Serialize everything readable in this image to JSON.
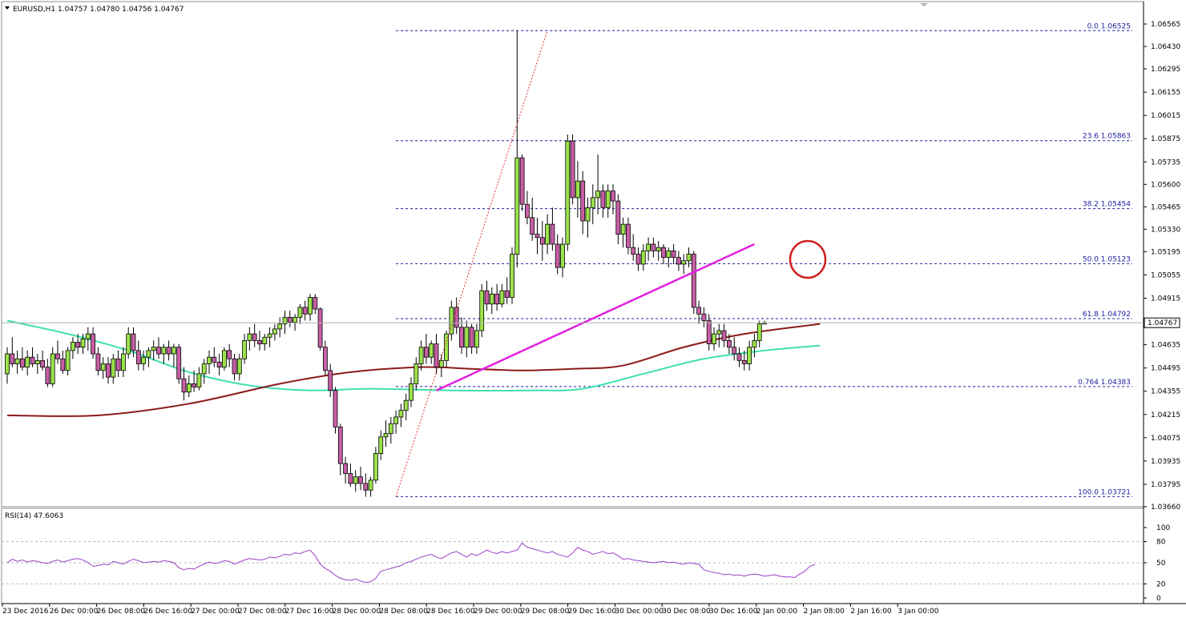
{
  "header": {
    "symbol": "EURUSD,H1",
    "ohlc": "1.04757 1.04780 1.04756 1.04767",
    "rsi_label": "RSI(14) 47.6063"
  },
  "colors": {
    "bull": "#9be34a",
    "bear": "#c85fa6",
    "wick": "#000000",
    "ma_red": "#8b1a1a",
    "ma_teal": "#40e0b0",
    "trendline": "#e020e0",
    "fib": "#1a1aa0",
    "rsi": "#9a40c8",
    "circle": "#d02020"
  },
  "chart_data": [
    {
      "type": "candlestick",
      "title": "EURUSD,H1",
      "ylim": [
        1.0366,
        1.06565
      ],
      "y_ticks": [
        "1.06565",
        "1.06430",
        "1.06295",
        "1.06155",
        "1.06015",
        "1.05875",
        "1.05735",
        "1.05600",
        "1.05465",
        "1.05330",
        "1.05195",
        "1.05055",
        "1.04915",
        "1.04780",
        "1.04635",
        "1.04495",
        "1.04355",
        "1.04215",
        "1.04075",
        "1.03935",
        "1.03795",
        "1.03660"
      ],
      "current_price": "1.04767",
      "x_ticks": [
        "23 Dec 2016",
        "26 Dec 00:00",
        "26 Dec 08:00",
        "26 Dec 16:00",
        "27 Dec 00:00",
        "27 Dec 08:00",
        "27 Dec 16:00",
        "28 Dec 00:00",
        "28 Dec 08:00",
        "28 Dec 16:00",
        "29 Dec 00:00",
        "29 Dec 08:00",
        "29 Dec 16:00",
        "30 Dec 00:00",
        "30 Dec 08:00",
        "30 Dec 16:00",
        "2 Jan 00:00",
        "2 Jan 08:00",
        "2 Jan 16:00",
        "3 Jan 00:00"
      ],
      "fib_levels": [
        {
          "label": "0.0 1.06525",
          "value": 1.06525
        },
        {
          "label": "23.6 1.05863",
          "value": 1.05863
        },
        {
          "label": "38.2 1.05454",
          "value": 1.05454
        },
        {
          "label": "50.0 1.05123",
          "value": 1.05123
        },
        {
          "label": "61.8 1.04792",
          "value": 1.04792
        },
        {
          "label": "0.764 1.04383",
          "value": 1.04383
        },
        {
          "label": "100.0 1.03721",
          "value": 1.03721
        }
      ],
      "candles": [
        [
          1.0446,
          1.0462,
          1.044,
          1.0458
        ],
        [
          1.0458,
          1.0468,
          1.045,
          1.0452
        ],
        [
          1.0452,
          1.046,
          1.0446,
          1.0455
        ],
        [
          1.0455,
          1.0462,
          1.0448,
          1.045
        ],
        [
          1.045,
          1.046,
          1.0445,
          1.0456
        ],
        [
          1.0456,
          1.0462,
          1.045,
          1.0452
        ],
        [
          1.0452,
          1.0458,
          1.0446,
          1.0454
        ],
        [
          1.0454,
          1.046,
          1.0448,
          1.045
        ],
        [
          1.045,
          1.0455,
          1.0438,
          1.044
        ],
        [
          1.044,
          1.0462,
          1.0438,
          1.0458
        ],
        [
          1.0458,
          1.0466,
          1.0452,
          1.0455
        ],
        [
          1.0455,
          1.046,
          1.0446,
          1.0448
        ],
        [
          1.0448,
          1.0462,
          1.0445,
          1.046
        ],
        [
          1.046,
          1.0468,
          1.0455,
          1.0465
        ],
        [
          1.0465,
          1.047,
          1.0458,
          1.0462
        ],
        [
          1.0462,
          1.047,
          1.0458,
          1.0467
        ],
        [
          1.0467,
          1.0474,
          1.046,
          1.047
        ],
        [
          1.047,
          1.0474,
          1.0455,
          1.0458
        ],
        [
          1.0458,
          1.0462,
          1.0445,
          1.0448
        ],
        [
          1.0448,
          1.0456,
          1.0443,
          1.0452
        ],
        [
          1.0452,
          1.0456,
          1.044,
          1.0444
        ],
        [
          1.0444,
          1.0458,
          1.044,
          1.0455
        ],
        [
          1.0455,
          1.046,
          1.0444,
          1.0448
        ],
        [
          1.0448,
          1.0462,
          1.0444,
          1.0458
        ],
        [
          1.0458,
          1.0474,
          1.0455,
          1.047
        ],
        [
          1.047,
          1.0474,
          1.0456,
          1.046
        ],
        [
          1.046,
          1.0466,
          1.0448,
          1.0452
        ],
        [
          1.0452,
          1.046,
          1.0448,
          1.0456
        ],
        [
          1.0456,
          1.0462,
          1.045,
          1.046
        ],
        [
          1.046,
          1.0466,
          1.0454,
          1.0462
        ],
        [
          1.0462,
          1.0468,
          1.0455,
          1.0458
        ],
        [
          1.0458,
          1.0464,
          1.0452,
          1.0462
        ],
        [
          1.0462,
          1.0466,
          1.0454,
          1.0458
        ],
        [
          1.0458,
          1.0464,
          1.045,
          1.0462
        ],
        [
          1.0462,
          1.0464,
          1.044,
          1.0443
        ],
        [
          1.0443,
          1.045,
          1.043,
          1.0435
        ],
        [
          1.0435,
          1.0445,
          1.0432,
          1.044
        ],
        [
          1.044,
          1.0448,
          1.0435,
          1.0438
        ],
        [
          1.0438,
          1.045,
          1.0436,
          1.0446
        ],
        [
          1.0446,
          1.0455,
          1.044,
          1.0452
        ],
        [
          1.0452,
          1.046,
          1.0446,
          1.0456
        ],
        [
          1.0456,
          1.0462,
          1.045,
          1.0453
        ],
        [
          1.0453,
          1.0458,
          1.0445,
          1.045
        ],
        [
          1.045,
          1.0462,
          1.0448,
          1.046
        ],
        [
          1.046,
          1.0464,
          1.045,
          1.0455
        ],
        [
          1.0455,
          1.0458,
          1.0442,
          1.0446
        ],
        [
          1.0446,
          1.0458,
          1.0442,
          1.0455
        ],
        [
          1.0455,
          1.047,
          1.0452,
          1.0466
        ],
        [
          1.0466,
          1.0474,
          1.046,
          1.047
        ],
        [
          1.047,
          1.0476,
          1.0462,
          1.0466
        ],
        [
          1.0466,
          1.0472,
          1.046,
          1.0464
        ],
        [
          1.0464,
          1.047,
          1.046,
          1.0468
        ],
        [
          1.0468,
          1.0474,
          1.0462,
          1.047
        ],
        [
          1.047,
          1.0476,
          1.0466,
          1.0473
        ],
        [
          1.0473,
          1.048,
          1.0468,
          1.0476
        ],
        [
          1.0476,
          1.0484,
          1.047,
          1.048
        ],
        [
          1.048,
          1.0484,
          1.0474,
          1.0477
        ],
        [
          1.0477,
          1.0482,
          1.0472,
          1.048
        ],
        [
          1.048,
          1.0488,
          1.0476,
          1.0486
        ],
        [
          1.0486,
          1.049,
          1.0478,
          1.0482
        ],
        [
          1.0482,
          1.0494,
          1.0478,
          1.0492
        ],
        [
          1.0492,
          1.0494,
          1.0482,
          1.0485
        ],
        [
          1.0485,
          1.0486,
          1.046,
          1.0462
        ],
        [
          1.0462,
          1.0466,
          1.0445,
          1.0448
        ],
        [
          1.0448,
          1.0452,
          1.0432,
          1.0436
        ],
        [
          1.0436,
          1.0438,
          1.041,
          1.0414
        ],
        [
          1.0414,
          1.0416,
          1.0385,
          1.0392
        ],
        [
          1.0392,
          1.0396,
          1.038,
          1.0386
        ],
        [
          1.0386,
          1.0392,
          1.0378,
          1.038
        ],
        [
          1.038,
          1.0388,
          1.0375,
          1.0384
        ],
        [
          1.0384,
          1.039,
          1.0376,
          1.038
        ],
        [
          1.038,
          1.0386,
          1.0372,
          1.0376
        ],
        [
          1.0376,
          1.0384,
          1.0372,
          1.0382
        ],
        [
          1.0382,
          1.0402,
          1.038,
          1.0398
        ],
        [
          1.0398,
          1.0412,
          1.0394,
          1.0408
        ],
        [
          1.0408,
          1.0418,
          1.0402,
          1.041
        ],
        [
          1.041,
          1.042,
          1.0404,
          1.0416
        ],
        [
          1.0416,
          1.0424,
          1.041,
          1.042
        ],
        [
          1.042,
          1.0428,
          1.0414,
          1.0424
        ],
        [
          1.0424,
          1.0434,
          1.0418,
          1.043
        ],
        [
          1.043,
          1.0444,
          1.0426,
          1.044
        ],
        [
          1.044,
          1.0456,
          1.0436,
          1.0452
        ],
        [
          1.0452,
          1.0466,
          1.0448,
          1.0462
        ],
        [
          1.0462,
          1.047,
          1.0452,
          1.0456
        ],
        [
          1.0456,
          1.0466,
          1.0452,
          1.0464
        ],
        [
          1.0464,
          1.047,
          1.0446,
          1.045
        ],
        [
          1.045,
          1.0458,
          1.0444,
          1.0454
        ],
        [
          1.0454,
          1.0472,
          1.045,
          1.047
        ],
        [
          1.047,
          1.049,
          1.0466,
          1.0486
        ],
        [
          1.0486,
          1.0492,
          1.047,
          1.0474
        ],
        [
          1.0474,
          1.048,
          1.0458,
          1.0462
        ],
        [
          1.0462,
          1.0478,
          1.0456,
          1.0474
        ],
        [
          1.0474,
          1.0476,
          1.0458,
          1.0462
        ],
        [
          1.0462,
          1.0476,
          1.0458,
          1.0472
        ],
        [
          1.0472,
          1.05,
          1.0468,
          1.0496
        ],
        [
          1.0496,
          1.0502,
          1.0484,
          1.0488
        ],
        [
          1.0488,
          1.0498,
          1.0482,
          1.0494
        ],
        [
          1.0494,
          1.05,
          1.0484,
          1.0488
        ],
        [
          1.0488,
          1.05,
          1.0486,
          1.0496
        ],
        [
          1.0496,
          1.0504,
          1.0488,
          1.0492
        ],
        [
          1.0492,
          1.0522,
          1.0488,
          1.0518
        ],
        [
          1.0518,
          1.06525,
          1.051,
          1.0576
        ],
        [
          1.0576,
          1.0578,
          1.0544,
          1.0548
        ],
        [
          1.0548,
          1.0556,
          1.0536,
          1.054
        ],
        [
          1.054,
          1.0552,
          1.0526,
          1.053
        ],
        [
          1.053,
          1.054,
          1.0518,
          1.0528
        ],
        [
          1.0528,
          1.0538,
          1.0514,
          1.0524
        ],
        [
          1.0524,
          1.0542,
          1.0518,
          1.0536
        ],
        [
          1.0536,
          1.0546,
          1.052,
          1.0524
        ],
        [
          1.0524,
          1.053,
          1.0506,
          1.051
        ],
        [
          1.051,
          1.0528,
          1.0504,
          1.0524
        ],
        [
          1.0524,
          1.059,
          1.052,
          1.0586
        ],
        [
          1.0586,
          1.059,
          1.0548,
          1.0552
        ],
        [
          1.0552,
          1.0574,
          1.054,
          1.0562
        ],
        [
          1.0562,
          1.0568,
          1.053,
          1.0538
        ],
        [
          1.0538,
          1.0552,
          1.0528,
          1.0546
        ],
        [
          1.0546,
          1.056,
          1.0536,
          1.0552
        ],
        [
          1.0552,
          1.0578,
          1.0542,
          1.0556
        ],
        [
          1.0556,
          1.056,
          1.054,
          1.0546
        ],
        [
          1.0546,
          1.056,
          1.054,
          1.0556
        ],
        [
          1.0556,
          1.056,
          1.0542,
          1.055
        ],
        [
          1.055,
          1.0554,
          1.0524,
          1.053
        ],
        [
          1.053,
          1.054,
          1.0522,
          1.0536
        ],
        [
          1.0536,
          1.054,
          1.0518,
          1.0522
        ],
        [
          1.0522,
          1.053,
          1.0514,
          1.0518
        ],
        [
          1.0518,
          1.0522,
          1.0508,
          1.0512
        ],
        [
          1.0512,
          1.0524,
          1.0508,
          1.052
        ],
        [
          1.052,
          1.0528,
          1.0514,
          1.0524
        ],
        [
          1.0524,
          1.0528,
          1.0516,
          1.052
        ],
        [
          1.052,
          1.0526,
          1.0514,
          1.0522
        ],
        [
          1.0522,
          1.0524,
          1.0512,
          1.0516
        ],
        [
          1.0516,
          1.0522,
          1.051,
          1.052
        ],
        [
          1.052,
          1.0524,
          1.0512,
          1.0516
        ],
        [
          1.0516,
          1.052,
          1.0508,
          1.0512
        ],
        [
          1.0512,
          1.0518,
          1.0506,
          1.0514
        ],
        [
          1.0514,
          1.0522,
          1.051,
          1.0518
        ],
        [
          1.0518,
          1.052,
          1.0482,
          1.0486
        ],
        [
          1.0486,
          1.049,
          1.0476,
          1.0482
        ],
        [
          1.0482,
          1.0486,
          1.0474,
          1.0478
        ],
        [
          1.0478,
          1.0482,
          1.046,
          1.0464
        ],
        [
          1.0464,
          1.0474,
          1.046,
          1.047
        ],
        [
          1.047,
          1.0476,
          1.0462,
          1.0472
        ],
        [
          1.0472,
          1.0476,
          1.0462,
          1.0466
        ],
        [
          1.0466,
          1.047,
          1.0458,
          1.0462
        ],
        [
          1.0462,
          1.0468,
          1.0454,
          1.0458
        ],
        [
          1.0458,
          1.0462,
          1.045,
          1.0454
        ],
        [
          1.0454,
          1.046,
          1.0448,
          1.0452
        ],
        [
          1.0452,
          1.0466,
          1.0448,
          1.0462
        ],
        [
          1.0462,
          1.047,
          1.0456,
          1.0466
        ],
        [
          1.0466,
          1.0478,
          1.0462,
          1.0476
        ],
        [
          1.0476,
          1.0478,
          1.04756,
          1.04767
        ]
      ],
      "ma_red": [
        [
          0,
          1.0421
        ],
        [
          18,
          1.0421
        ],
        [
          36,
          1.0428
        ],
        [
          54,
          1.044
        ],
        [
          68,
          1.0447
        ],
        [
          82,
          1.045
        ],
        [
          92,
          1.0449
        ],
        [
          102,
          1.0448
        ],
        [
          112,
          1.0449
        ],
        [
          122,
          1.0451
        ],
        [
          134,
          1.0462
        ],
        [
          146,
          1.047
        ],
        [
          161,
          1.0476
        ]
      ],
      "ma_teal": [
        [
          0,
          1.0478
        ],
        [
          12,
          1.047
        ],
        [
          24,
          1.046
        ],
        [
          36,
          1.0447
        ],
        [
          48,
          1.0439
        ],
        [
          60,
          1.0436
        ],
        [
          72,
          1.0437
        ],
        [
          88,
          1.0436
        ],
        [
          104,
          1.0436
        ],
        [
          114,
          1.0437
        ],
        [
          126,
          1.0446
        ],
        [
          138,
          1.0455
        ],
        [
          150,
          1.046
        ],
        [
          161,
          1.0463
        ]
      ],
      "trendline": [
        [
          85,
          1.0436
        ],
        [
          148,
          1.0524
        ]
      ],
      "fib_swing": [
        [
          77,
          1.03721
        ],
        [
          107,
          1.06525
        ]
      ]
    },
    {
      "type": "line",
      "title": "RSI(14) 47.6063",
      "ylim": [
        0,
        100
      ],
      "y_ticks": [
        "100",
        "80",
        "50",
        "20",
        "0"
      ],
      "levels": [
        80,
        50,
        20
      ],
      "values": [
        50,
        55,
        52,
        54,
        51,
        53,
        52,
        50,
        49,
        52,
        54,
        51,
        53,
        55,
        56,
        54,
        50,
        45,
        46,
        48,
        47,
        52,
        50,
        48,
        52,
        55,
        53,
        50,
        51,
        52,
        51,
        53,
        52,
        50,
        43,
        40,
        42,
        41,
        45,
        48,
        51,
        49,
        50,
        53,
        52,
        48,
        51,
        54,
        56,
        55,
        54,
        55,
        58,
        57,
        59,
        62,
        61,
        64,
        63,
        66,
        68,
        60,
        48,
        42,
        38,
        32,
        28,
        26,
        25,
        27,
        24,
        22,
        23,
        28,
        38,
        40,
        42,
        44,
        46,
        50,
        52,
        55,
        58,
        60,
        62,
        58,
        56,
        60,
        64,
        66,
        62,
        58,
        63,
        60,
        64,
        68,
        65,
        63,
        66,
        64,
        66,
        68,
        78,
        72,
        70,
        68,
        66,
        64,
        66,
        62,
        60,
        58,
        64,
        72,
        68,
        66,
        62,
        64,
        66,
        63,
        64,
        60,
        55,
        56,
        54,
        53,
        52,
        51,
        50,
        51,
        52,
        50,
        51,
        49,
        48,
        50,
        49,
        48,
        40,
        38,
        36,
        35,
        33,
        34,
        32,
        33,
        31,
        33,
        34,
        33,
        31,
        32,
        33,
        31,
        30,
        30,
        29,
        34,
        38,
        45,
        47.6
      ]
    }
  ]
}
